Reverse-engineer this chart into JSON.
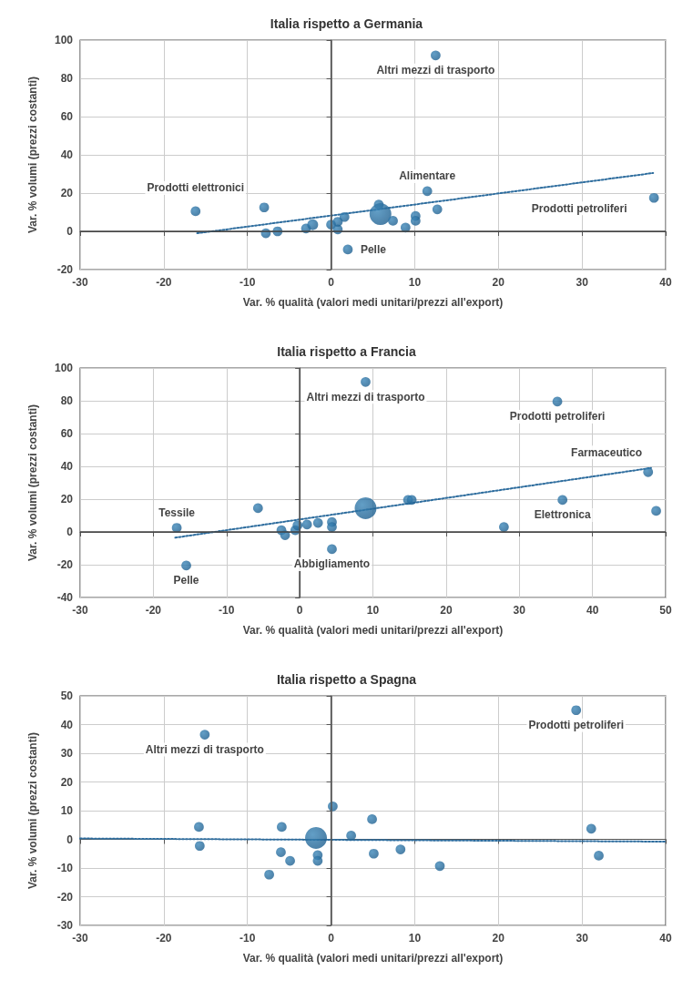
{
  "chart_data": [
    {
      "type": "bubble",
      "title": "Italia rispetto a Germania",
      "xlabel": "Var. % qualità (valori medi unitari/prezzi all'export)",
      "ylabel": "Var. % volumi (prezzi costanti)",
      "xlim": [
        -30,
        40
      ],
      "xticks": [
        -30,
        -20,
        -10,
        0,
        10,
        20,
        30,
        40
      ],
      "ylim": [
        -20,
        100
      ],
      "yticks": [
        -20,
        0,
        20,
        40,
        60,
        80,
        100
      ],
      "grid": true,
      "ref_lines": [
        {
          "axis": "x",
          "value": 0,
          "color": "#555555"
        },
        {
          "axis": "y",
          "value": 0,
          "color": "#444444"
        }
      ],
      "series": [
        {
          "color": "#1a5a8a",
          "x": [
            12.5,
            11.5,
            38.6,
            -16.2,
            -8,
            -7.8,
            -6.4,
            -3,
            -2.2,
            0,
            0.8,
            0.8,
            1.6,
            5.7,
            5.9,
            7.4,
            8.9,
            10.1,
            10.1,
            12.7,
            2
          ],
          "values": [
            92,
            21,
            17.5,
            10.5,
            12.5,
            -1,
            0,
            1.5,
            3.5,
            3.5,
            1,
            5,
            7.5,
            14,
            9,
            5.5,
            2,
            8,
            5.5,
            11.5,
            -9.5
          ],
          "sizes": [
            0.2,
            0.2,
            0.2,
            0.2,
            0.2,
            0.2,
            0.2,
            0.2,
            0.25,
            0.2,
            0.2,
            0.2,
            0.2,
            0.2,
            1,
            0.2,
            0.2,
            0.2,
            0.2,
            0.2,
            0.2
          ]
        },
        {
          "type": "line",
          "color": "#2e6d9e",
          "line_style": "dotted",
          "marker": "none",
          "x": [
            -16,
            38.5
          ],
          "values": [
            -1,
            30.5
          ]
        }
      ],
      "annotations": [
        {
          "text": "Altri mezzi di trasporto",
          "x": 12.5,
          "y": 92
        },
        {
          "text": "Alimentare",
          "x": 11.5,
          "y": 21
        },
        {
          "text": "Prodotti petroliferi",
          "x": 38.6,
          "y": 17.5
        },
        {
          "text": "Prodotti elettronici",
          "x": -16.2,
          "y": 10.5
        },
        {
          "text": "Pelle",
          "x": 2,
          "y": -9.5
        }
      ]
    },
    {
      "type": "bubble",
      "title": "Italia rispetto a Francia",
      "xlabel": "Var. % qualità (valori medi unitari/prezzi all'export)",
      "ylabel": "Var. % volumi (prezzi costanti)",
      "xlim": [
        -30,
        50
      ],
      "xticks": [
        -30,
        -20,
        -10,
        0,
        10,
        20,
        30,
        40,
        50
      ],
      "ylim": [
        -40,
        100
      ],
      "yticks": [
        -40,
        -20,
        0,
        20,
        40,
        60,
        80,
        100
      ],
      "grid": true,
      "ref_lines": [
        {
          "axis": "x",
          "value": 0,
          "color": "#555555"
        },
        {
          "axis": "y",
          "value": 0,
          "color": "#444444"
        }
      ],
      "series": [
        {
          "color": "#1a5a8a",
          "x": [
            9,
            35.2,
            47.6,
            35.9,
            48.7,
            27.9,
            14.8,
            15.3,
            9,
            -5.7,
            -16.8,
            -15.5,
            -2.5,
            -2,
            -0.6,
            -0.3,
            1,
            2.5,
            4.4,
            4.4,
            4.4
          ],
          "values": [
            91.5,
            79.5,
            36.5,
            19.5,
            12.8,
            3,
            19.5,
            19.5,
            14.5,
            14.5,
            2.5,
            -20.5,
            1,
            -2,
            1,
            4,
            4.5,
            5.5,
            6,
            3,
            -10.5
          ],
          "sizes": [
            0.2,
            0.2,
            0.2,
            0.2,
            0.2,
            0.2,
            0.2,
            0.2,
            1,
            0.2,
            0.2,
            0.2,
            0.2,
            0.2,
            0.2,
            0.2,
            0.2,
            0.2,
            0.2,
            0.2,
            0.2
          ]
        },
        {
          "type": "line",
          "color": "#2e6d9e",
          "line_style": "dotted",
          "marker": "none",
          "x": [
            -17,
            48
          ],
          "values": [
            -3.5,
            39
          ]
        }
      ],
      "annotations": [
        {
          "text": "Altri mezzi di trasporto",
          "x": 9,
          "y": 91.5
        },
        {
          "text": "Prodotti petroliferi",
          "x": 35.2,
          "y": 79.5
        },
        {
          "text": "Farmaceutico",
          "x": 47.6,
          "y": 36.5
        },
        {
          "text": "Elettronica",
          "x": 35.9,
          "y": 19.5
        },
        {
          "text": "Tessile",
          "x": -16.8,
          "y": 2.5
        },
        {
          "text": "Pelle",
          "x": -15.5,
          "y": -20.5
        },
        {
          "text": "Abbigliamento",
          "x": 4.4,
          "y": -10.5
        }
      ]
    },
    {
      "type": "bubble",
      "title": "Italia rispetto a Spagna",
      "xlabel": "Var. % qualità (valori medi unitari/prezzi all'export)",
      "ylabel": "Var. % volumi (prezzi costanti)",
      "xlim": [
        -30,
        40
      ],
      "xticks": [
        -30,
        -20,
        -10,
        0,
        10,
        20,
        30,
        40
      ],
      "ylim": [
        -30,
        50
      ],
      "yticks": [
        -30,
        -20,
        -10,
        0,
        10,
        20,
        30,
        40,
        50
      ],
      "grid": true,
      "ref_lines": [
        {
          "axis": "x",
          "value": 0,
          "color": "#555555"
        }
      ],
      "series": [
        {
          "color": "#1a5a8a",
          "x": [
            29.3,
            -15.1,
            0.2,
            4.9,
            -15.8,
            -5.9,
            -1.8,
            2.4,
            31.1,
            -15.7,
            -6,
            -4.9,
            -1.6,
            -1.6,
            5.1,
            8.3,
            13,
            -7.4,
            32
          ],
          "values": [
            45,
            36.5,
            11.5,
            7,
            4.3,
            4.3,
            0.5,
            1.3,
            3.7,
            -2.3,
            -4.5,
            -7.5,
            -5.5,
            -7.5,
            -5,
            -3.5,
            -9.3,
            -12.3,
            -5.7
          ],
          "sizes": [
            0.2,
            0.2,
            0.2,
            0.2,
            0.2,
            0.2,
            1,
            0.2,
            0.2,
            0.2,
            0.2,
            0.2,
            0.2,
            0.2,
            0.2,
            0.2,
            0.2,
            0.2,
            0.2
          ]
        },
        {
          "type": "line",
          "color": "#2e6d9e",
          "line_style": "dotted",
          "marker": "none",
          "x": [
            -30,
            40
          ],
          "values": [
            0.3,
            -0.8
          ]
        }
      ],
      "annotations": [
        {
          "text": "Prodotti petroliferi",
          "x": 29.3,
          "y": 45
        },
        {
          "text": "Altri mezzi di trasporto",
          "x": -15.1,
          "y": 36.5
        }
      ]
    }
  ]
}
